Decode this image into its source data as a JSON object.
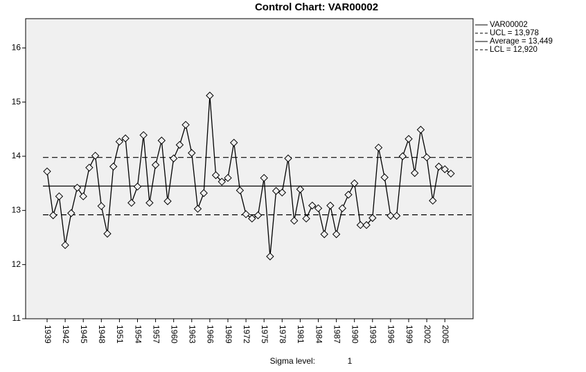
{
  "chart_data": {
    "type": "line",
    "title": "Control Chart: VAR00002",
    "categories": [
      "1939",
      null,
      null,
      "1942",
      null,
      null,
      "1945",
      null,
      null,
      "1948",
      null,
      null,
      "1951",
      null,
      null,
      "1954",
      null,
      null,
      "1957",
      null,
      null,
      "1960",
      null,
      null,
      "1963",
      null,
      null,
      "1966",
      null,
      null,
      "1969",
      null,
      null,
      "1972",
      null,
      null,
      "1975",
      null,
      null,
      "1978",
      null,
      null,
      "1981",
      null,
      null,
      "1984",
      null,
      null,
      "1987",
      null,
      null,
      "1990",
      null,
      null,
      "1993",
      null,
      null,
      "1996",
      null,
      null,
      "1999",
      null,
      null,
      "2002",
      null,
      null,
      "2005",
      null
    ],
    "series": [
      {
        "name": "VAR00002",
        "color": "#000000",
        "values": [
          13.72,
          12.91,
          13.26,
          12.36,
          12.95,
          13.42,
          13.26,
          13.79,
          14.01,
          13.08,
          12.57,
          13.81,
          14.27,
          14.33,
          13.14,
          13.44,
          14.39,
          13.14,
          13.84,
          14.29,
          13.17,
          13.96,
          14.21,
          14.58,
          14.06,
          13.03,
          13.32,
          15.12,
          13.65,
          13.53,
          13.6,
          14.25,
          13.37,
          12.93,
          12.85,
          12.91,
          13.6,
          12.15,
          13.36,
          13.33,
          13.96,
          12.81,
          13.39,
          12.85,
          13.09,
          13.04,
          12.56,
          13.09,
          12.56,
          13.04,
          13.29,
          13.5,
          12.73,
          12.73,
          12.86,
          14.16,
          13.61,
          12.9,
          12.9,
          14.0,
          14.32,
          13.69,
          14.49,
          13.98,
          13.18,
          13.81,
          13.76,
          13.68
        ]
      }
    ],
    "control_limits": [
      {
        "name": "UCL = 13,978",
        "value": 13.978,
        "dashed": true
      },
      {
        "name": "Average = 13,449",
        "value": 13.449,
        "dashed": false
      },
      {
        "name": "LCL = 12,920",
        "value": 12.92,
        "dashed": true
      }
    ],
    "ylim": [
      11,
      16.54
    ],
    "yticks": [
      11,
      12,
      13,
      14,
      15,
      16
    ],
    "grid": false,
    "footer_label": "Sigma level:",
    "sigma_level": 1
  }
}
